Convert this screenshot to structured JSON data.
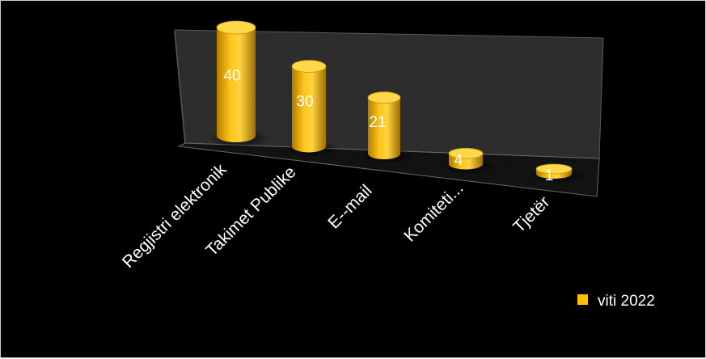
{
  "chart_data": {
    "type": "bar",
    "style": "3d-cylinder",
    "categories": [
      "Regjistri elektronik",
      "Takimet  Publike",
      "E--mail",
      "Komiteti...",
      "Tjetër"
    ],
    "series": [
      {
        "name": "viti 2022",
        "values": [
          40,
          30,
          21,
          4,
          1
        ],
        "color": "#ffc000"
      }
    ],
    "ylim": [
      0,
      45
    ],
    "grid": false,
    "legend": "bottom-right",
    "background": "#000000"
  }
}
